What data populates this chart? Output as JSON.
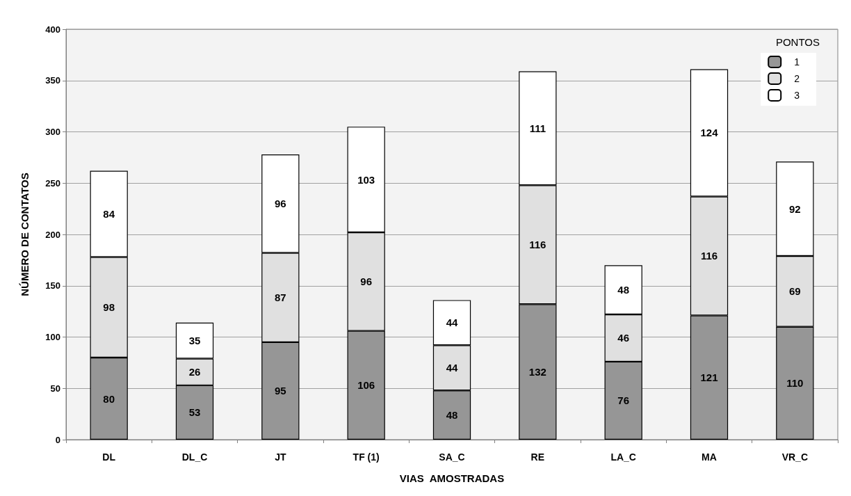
{
  "chart_data": {
    "type": "bar",
    "stacked": true,
    "xlabel": "VIAS  AMOSTRADAS",
    "ylabel": "NÚMERO DE CONTATOS",
    "legend_title": "PONTOS",
    "categories": [
      "DL",
      "DL_C",
      "JT",
      "TF (1)",
      "SA_C",
      "RE",
      "LA_C",
      "MA",
      "VR_C"
    ],
    "series": [
      {
        "name": "1",
        "color": "#969696",
        "values": [
          80,
          53,
          95,
          106,
          48,
          132,
          76,
          121,
          110
        ]
      },
      {
        "name": "2",
        "color": "#e0e0e0",
        "values": [
          98,
          26,
          87,
          96,
          44,
          116,
          46,
          116,
          69
        ]
      },
      {
        "name": "3",
        "color": "#ffffff",
        "values": [
          84,
          35,
          96,
          103,
          44,
          111,
          48,
          124,
          92
        ]
      }
    ],
    "ylim": [
      0,
      400
    ],
    "yticks": [
      0,
      50,
      100,
      150,
      200,
      250,
      300,
      350,
      400
    ],
    "grid": "y",
    "legend": "top right",
    "data_labels": true
  }
}
